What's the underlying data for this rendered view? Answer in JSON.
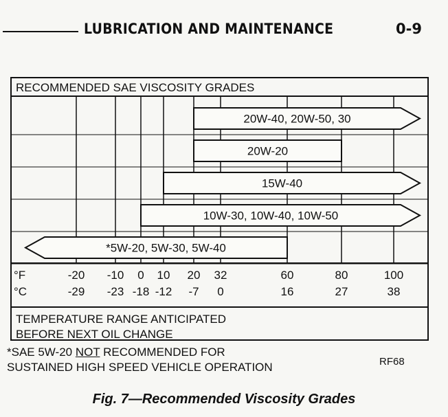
{
  "header": {
    "title": "LUBRICATION AND MAINTENANCE",
    "page_number": "0-9"
  },
  "chart_data": {
    "type": "range-bar",
    "title": "RECOMMENDED SAE VISCOSITY GRADES",
    "xlabel": "TEMPERATURE RANGE ANTICIPATED BEFORE NEXT OIL CHANGE",
    "fahrenheit_unit": "°F",
    "celsius_unit": "°C",
    "ticks": [
      {
        "f": "-20",
        "c": "-29",
        "value": -20
      },
      {
        "f": "-10",
        "c": "-23",
        "value": -10
      },
      {
        "f": "0",
        "c": "-18",
        "value": 0
      },
      {
        "f": "10",
        "c": "-12",
        "value": 10
      },
      {
        "f": "20",
        "c": "-7",
        "value": 20
      },
      {
        "f": "32",
        "c": "0",
        "value": 32
      },
      {
        "f": "60",
        "c": "16",
        "value": 60
      },
      {
        "f": "80",
        "c": "27",
        "value": 80
      },
      {
        "f": "100",
        "c": "38",
        "value": 100
      }
    ],
    "series": [
      {
        "name": "20W-40, 20W-50, 30",
        "from_f": 20,
        "to_f": 100,
        "open_start": false,
        "open_end": true
      },
      {
        "name": "20W-20",
        "from_f": 20,
        "to_f": 80,
        "open_start": false,
        "open_end": false
      },
      {
        "name": "15W-40",
        "from_f": 10,
        "to_f": 100,
        "open_start": false,
        "open_end": true
      },
      {
        "name": "10W-30, 10W-40, 10W-50",
        "from_f": 0,
        "to_f": 100,
        "open_start": false,
        "open_end": true
      },
      {
        "name": "*5W-20, 5W-30, 5W-40",
        "from_f": -20,
        "to_f": 60,
        "open_start": true,
        "open_end": false
      }
    ]
  },
  "footnote": {
    "line1_prefix": "*SAE 5W-20 ",
    "line1_emphasis": "NOT",
    "line1_suffix": " RECOMMENDED FOR",
    "line2": "SUSTAINED HIGH SPEED VEHICLE OPERATION"
  },
  "ref_code": "RF68",
  "caption": "Fig. 7—Recommended Viscosity Grades"
}
